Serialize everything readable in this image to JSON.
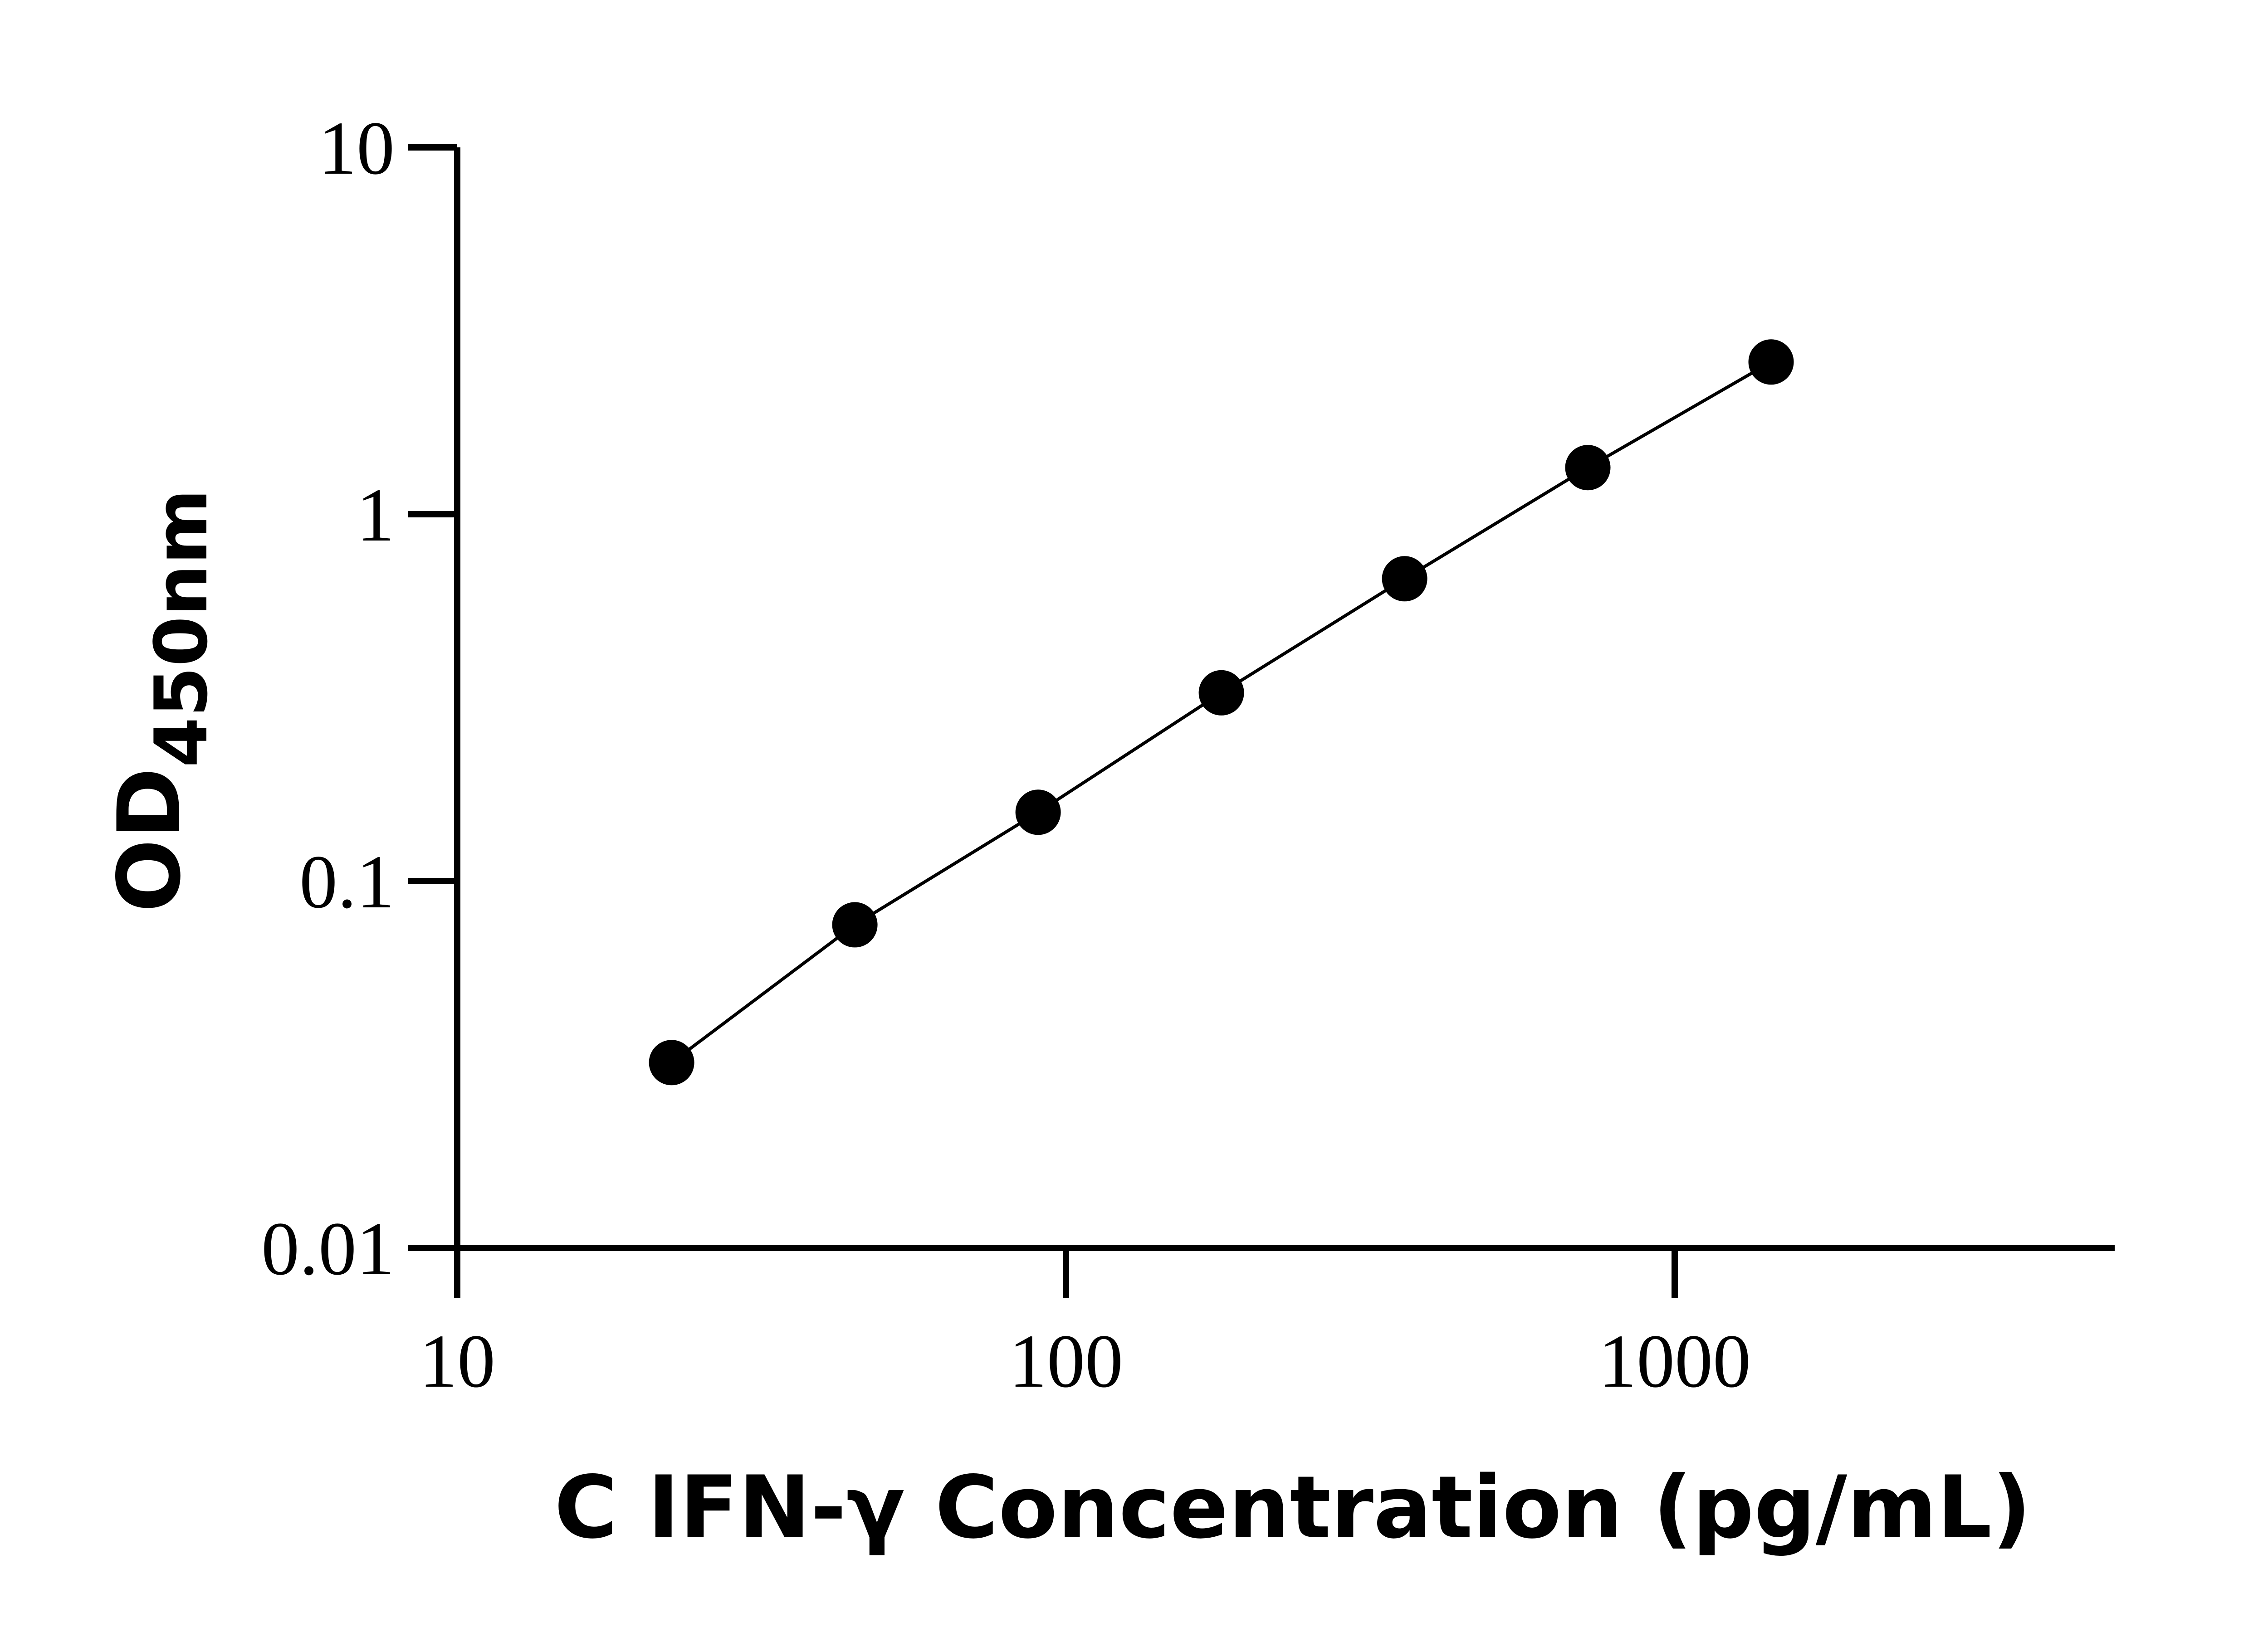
{
  "chart_data": {
    "type": "line",
    "xlabel": "C IFN-γ Concentration (pg/mL)",
    "ylabel_main": "OD",
    "ylabel_sub": "450nm",
    "xscale": "log",
    "yscale": "log",
    "xlim": [
      10,
      4500
    ],
    "ylim": [
      0.01,
      10
    ],
    "x_ticks": [
      {
        "value": 10,
        "label": "10"
      },
      {
        "value": 100,
        "label": "100"
      },
      {
        "value": 1000,
        "label": "1000"
      }
    ],
    "y_ticks": [
      {
        "value": 0.01,
        "label": "0.01"
      },
      {
        "value": 0.1,
        "label": "0.1"
      },
      {
        "value": 1,
        "label": "1"
      },
      {
        "value": 10,
        "label": "10"
      }
    ],
    "grid": false,
    "legend": "none",
    "colors": {
      "series": "#000000",
      "axes": "#000000",
      "background": "#ffffff"
    },
    "series": [
      {
        "x": [
          22.5,
          45,
          90,
          180,
          360,
          720,
          1440
        ],
        "y": [
          0.032,
          0.076,
          0.154,
          0.326,
          0.667,
          1.34,
          2.6
        ]
      }
    ]
  }
}
